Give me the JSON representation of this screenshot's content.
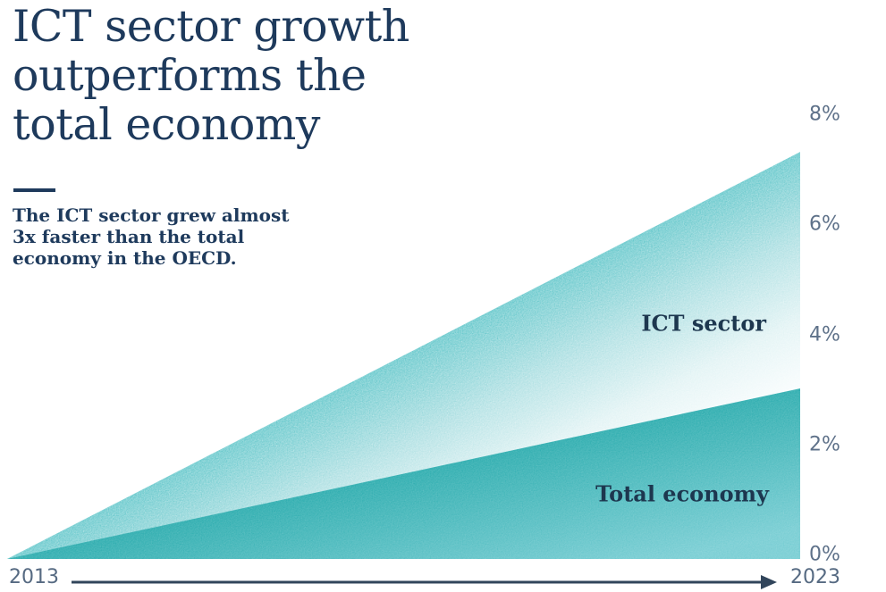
{
  "header": {
    "title": "ICT sector growth\noutperforms the\ntotal economy",
    "subtitle": "The ICT sector grew almost\n3x faster than the total\neconomy in the OECD."
  },
  "colors": {
    "title_navy": "#1e3a5c",
    "series_label_navy": "#1d374f",
    "axis_text": "#5e7189",
    "axis_line": "#31455b",
    "ict_gradient": [
      "#58c3c7",
      "#a7dde0",
      "#dff2f3",
      "#f7fcfd"
    ],
    "total_gradient": [
      "#28abad",
      "#74ccd2"
    ]
  },
  "chart_data": {
    "type": "area",
    "title": "ICT sector growth outperforms the total economy",
    "x": [
      2013,
      2023
    ],
    "series": [
      {
        "name": "ICT sector",
        "values": [
          0,
          7.4
        ]
      },
      {
        "name": "Total economy",
        "values": [
          0,
          3.1
        ]
      }
    ],
    "ylim": [
      0,
      8
    ],
    "yticks": [
      "8%",
      "6%",
      "4%",
      "2%",
      "0%"
    ],
    "ytick_values": [
      8,
      6,
      4,
      2,
      0
    ],
    "xlabels": {
      "start": "2013",
      "end": "2023"
    },
    "legend_position": "inside-right",
    "grid": false,
    "unit": "%"
  }
}
